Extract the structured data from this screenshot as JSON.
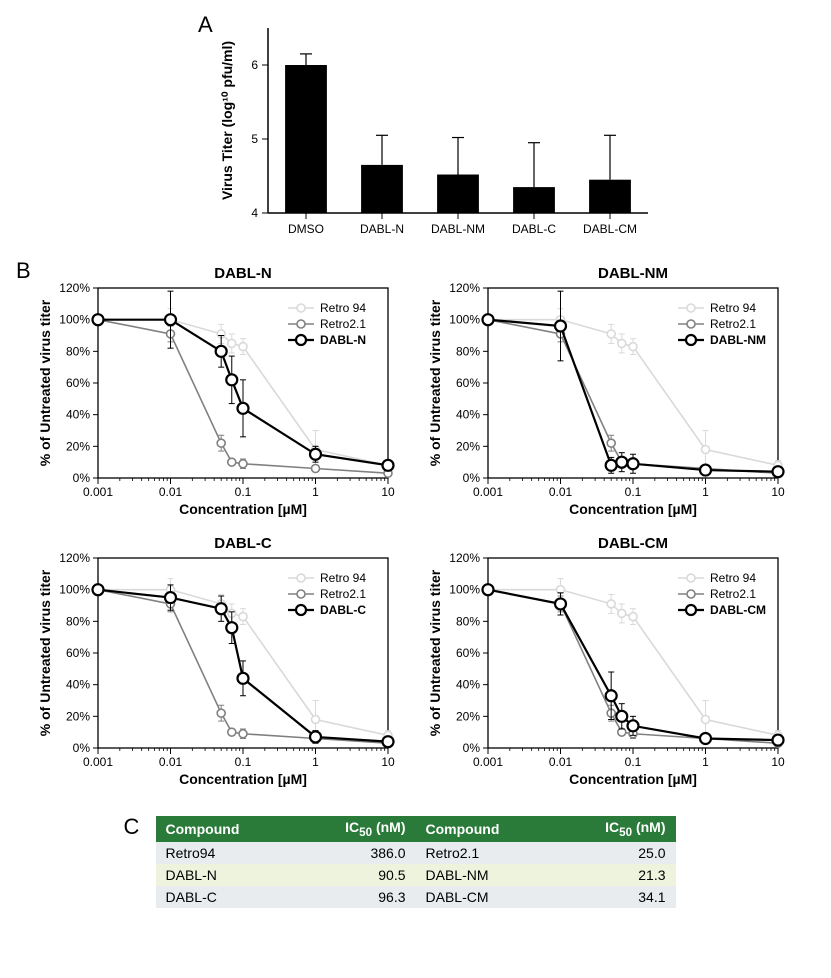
{
  "panelA": {
    "letter": "A",
    "ylabel": "Virus Titer (log¹⁰ pfu/ml)",
    "ylim": [
      4,
      6.5
    ],
    "yticks": [
      4,
      5,
      6
    ],
    "bar_color": "#000000",
    "categories": [
      "DMSO",
      "DABL-N",
      "DABL-NM",
      "DABL-C",
      "DABL-CM"
    ],
    "values": [
      6.0,
      4.65,
      4.52,
      4.35,
      4.45
    ],
    "errors": [
      0.15,
      0.4,
      0.5,
      0.6,
      0.6
    ],
    "bar_width": 0.55,
    "error_cap": 6
  },
  "panelB": {
    "letter": "B",
    "xlabel": "Concentration [µM]",
    "ylabel": "% of Untreated virus titer",
    "log_ticks": [
      0.001,
      0.01,
      0.1,
      1,
      10
    ],
    "log_tick_labels": [
      "0.001",
      "0.01",
      "0.1",
      "1",
      "10"
    ],
    "y_ticks": [
      0,
      20,
      40,
      60,
      80,
      100,
      120
    ],
    "y_tick_labels": [
      "0%",
      "20%",
      "40%",
      "60%",
      "80%",
      "100%",
      "120%"
    ],
    "colors": {
      "retro94": "#d9d9d9",
      "retro21": "#808080",
      "main": "#000000"
    },
    "retro94": {
      "label": "Retro 94",
      "x": [
        0.001,
        0.01,
        0.05,
        0.07,
        0.1,
        1,
        10
      ],
      "y": [
        100,
        100,
        91,
        85,
        83,
        18,
        8
      ],
      "err": [
        0,
        7,
        6,
        6,
        5,
        12,
        3
      ]
    },
    "retro21": {
      "label": "Retro2.1",
      "x": [
        0.001,
        0.01,
        0.05,
        0.07,
        0.1,
        1,
        10
      ],
      "y": [
        100,
        91,
        22,
        10,
        9,
        6,
        3
      ],
      "err": [
        0,
        5,
        5,
        2,
        3,
        2,
        2
      ]
    },
    "subplots": [
      {
        "title": "DABL-N",
        "label": "DABL-N",
        "x": [
          0.001,
          0.01,
          0.05,
          0.07,
          0.1,
          1,
          10
        ],
        "y": [
          100,
          100,
          80,
          62,
          44,
          15,
          8
        ],
        "err": [
          0,
          18,
          10,
          15,
          18,
          5,
          3
        ]
      },
      {
        "title": "DABL-NM",
        "label": "DABL-NM",
        "x": [
          0.001,
          0.01,
          0.05,
          0.07,
          0.1,
          1,
          10
        ],
        "y": [
          100,
          96,
          8,
          10,
          9,
          5,
          4
        ],
        "err": [
          0,
          22,
          5,
          6,
          6,
          3,
          3
        ]
      },
      {
        "title": "DABL-C",
        "label": "DABL-C",
        "x": [
          0.001,
          0.01,
          0.05,
          0.07,
          0.1,
          1,
          10
        ],
        "y": [
          100,
          95,
          88,
          76,
          44,
          7,
          4
        ],
        "err": [
          0,
          8,
          8,
          10,
          11,
          4,
          3
        ]
      },
      {
        "title": "DABL-CM",
        "label": "DABL-CM",
        "x": [
          0.001,
          0.01,
          0.05,
          0.07,
          0.1,
          1,
          10
        ],
        "y": [
          100,
          91,
          33,
          20,
          14,
          6,
          5
        ],
        "err": [
          0,
          7,
          15,
          8,
          6,
          3,
          3
        ]
      }
    ]
  },
  "panelC": {
    "letter": "C",
    "header_bg": "#2a7a3a",
    "header_fg": "#ffffff",
    "row_alt_bg": "#eef3de",
    "row_bg": "#e8ecee",
    "columns": [
      "Compound",
      "IC₅₀ (nM)",
      "Compound",
      "IC₅₀ (nM)"
    ],
    "rows": [
      [
        "Retro94",
        "386.0",
        "Retro2.1",
        "25.0"
      ],
      [
        "DABL-N",
        "90.5",
        "DABL-NM",
        "21.3"
      ],
      [
        "DABL-C",
        "96.3",
        "DABL-CM",
        "34.1"
      ]
    ]
  }
}
